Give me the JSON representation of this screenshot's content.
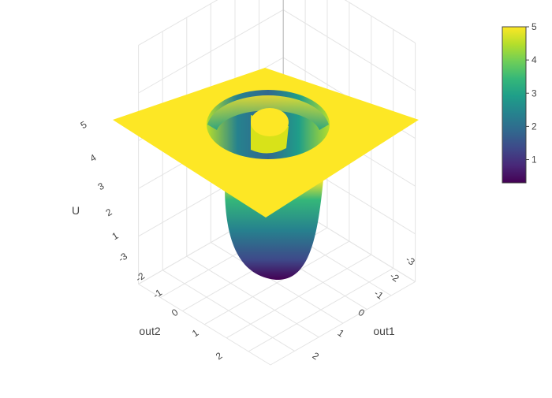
{
  "chart_data": {
    "type": "surface",
    "colorscale": "viridis",
    "colorscale_stops": [
      "#440154",
      "#482878",
      "#3e4989",
      "#31688e",
      "#26828e",
      "#1f9e89",
      "#35b779",
      "#6ece58",
      "#b5de2b",
      "#fde725"
    ],
    "axes": {
      "x": {
        "title": "out1",
        "range": [
          -3,
          3
        ],
        "ticks": [
          "-3",
          "-2",
          "-1",
          "0",
          "1",
          "2"
        ]
      },
      "y": {
        "title": "out2",
        "range": [
          -3,
          3
        ],
        "ticks": [
          "-3",
          "-2",
          "-1",
          "0",
          "1",
          "2"
        ]
      },
      "z": {
        "title": "U",
        "range": [
          0,
          5
        ],
        "ticks": [
          "1",
          "2",
          "3",
          "4",
          "5"
        ]
      }
    },
    "surface": {
      "plateau_value": 5,
      "z_min": 0.3,
      "outer_well_radius": 1.5,
      "inner_peak_radius": 0.5
    },
    "colorbar": {
      "ticks": [
        "1",
        "2",
        "3",
        "4",
        "5"
      ],
      "range": [
        0.3,
        5
      ]
    },
    "grid": true
  }
}
